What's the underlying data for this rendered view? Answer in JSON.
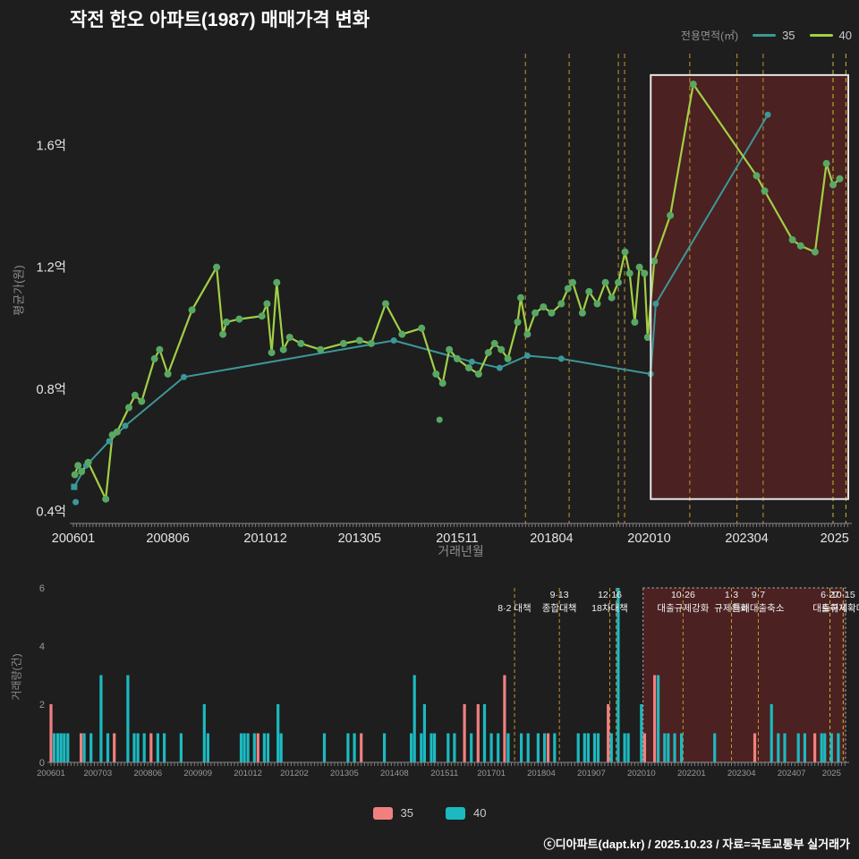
{
  "title": "작전 한오 아파트(1987) 매매가격 변화",
  "footer": "ⓒ디아파트(dapt.kr) / 2025.10.23 / 자료=국토교통부 실거래가",
  "legend_top": {
    "label": "전용면적(㎡)",
    "items": [
      {
        "name": "35",
        "color": "#3c9898"
      },
      {
        "name": "40",
        "color": "#a2cf45"
      }
    ]
  },
  "legend_bottom": {
    "items": [
      {
        "name": "35",
        "color": "#f08080"
      },
      {
        "name": "40",
        "color": "#1cb9c0"
      }
    ]
  },
  "events": [
    {
      "t": 2017.58,
      "line1": "",
      "line2": "8·2 대책",
      "color": "#c89530"
    },
    {
      "t": 2018.7,
      "line1": "9·13",
      "line2": "종합대책",
      "color": "#c89530"
    },
    {
      "t": 2019.96,
      "line1": "12·16",
      "line2": "18차대책",
      "color": "#c89530"
    },
    {
      "t": 2020.12,
      "line1": "",
      "line2": "",
      "color": "#c89530"
    },
    {
      "t": 2021.79,
      "line1": "10·26",
      "line2": "대출규제강화",
      "color": "#c89530"
    },
    {
      "t": 2023.0,
      "line1": "1·3",
      "line2": "규제완화",
      "color": "#c89530"
    },
    {
      "t": 2023.67,
      "line1": "9·7",
      "line2": "특례대출축소",
      "color": "#c89530"
    },
    {
      "t": 2025.46,
      "line1": "6·27",
      "line2": "대출규제",
      "color": "#c6bd38"
    },
    {
      "t": 2025.79,
      "line1": "10·15",
      "line2": "토허제확대",
      "color": "#c6bd38"
    }
  ],
  "chart_data": [
    {
      "type": "line",
      "title": "",
      "xlabel": "거래년월",
      "ylabel": "평균가(원)",
      "xlim": [
        2006.0,
        2025.85
      ],
      "ylim": [
        0.36,
        1.9
      ],
      "x_ticks": [
        {
          "label": "200601",
          "t": 2006.0
        },
        {
          "label": "200806",
          "t": 2008.42
        },
        {
          "label": "201012",
          "t": 2010.92
        },
        {
          "label": "201305",
          "t": 2013.33
        },
        {
          "label": "201511",
          "t": 2015.83
        },
        {
          "label": "201804",
          "t": 2018.25
        },
        {
          "label": "202010",
          "t": 2020.75
        },
        {
          "label": "202304",
          "t": 2023.25
        },
        {
          "label": "2025",
          "t": 2025.5
        }
      ],
      "y_ticks": [
        {
          "label": "0.4억",
          "v": 0.4
        },
        {
          "label": "0.8억",
          "v": 0.8
        },
        {
          "label": "1.2억",
          "v": 1.2
        },
        {
          "label": "1.6억",
          "v": 1.6
        }
      ],
      "series": [
        {
          "name": "35",
          "area_sqm": 35,
          "color": "#3c9898",
          "points": [
            [
              2006.02,
              0.48
            ],
            [
              2006.33,
              0.55
            ],
            [
              2006.92,
              0.63
            ],
            [
              2007.33,
              0.68
            ],
            [
              2008.83,
              0.84
            ],
            [
              2014.21,
              0.96
            ],
            [
              2016.21,
              0.89
            ],
            [
              2016.92,
              0.87
            ],
            [
              2017.63,
              0.91
            ],
            [
              2018.5,
              0.9
            ],
            [
              2020.79,
              0.85
            ],
            [
              2020.92,
              1.08
            ],
            [
              2023.79,
              1.7
            ]
          ]
        },
        {
          "name": "40",
          "area_sqm": 40,
          "color": "#a2cf45",
          "marker_color": "#58a863",
          "points": [
            [
              2006.04,
              0.52
            ],
            [
              2006.12,
              0.55
            ],
            [
              2006.21,
              0.53
            ],
            [
              2006.38,
              0.56
            ],
            [
              2006.83,
              0.44
            ],
            [
              2007.0,
              0.65
            ],
            [
              2007.12,
              0.66
            ],
            [
              2007.42,
              0.74
            ],
            [
              2007.58,
              0.78
            ],
            [
              2007.75,
              0.76
            ],
            [
              2008.08,
              0.9
            ],
            [
              2008.21,
              0.93
            ],
            [
              2008.42,
              0.85
            ],
            [
              2009.04,
              1.06
            ],
            [
              2009.67,
              1.2
            ],
            [
              2009.83,
              0.98
            ],
            [
              2009.92,
              1.02
            ],
            [
              2010.25,
              1.03
            ],
            [
              2010.83,
              1.04
            ],
            [
              2010.96,
              1.08
            ],
            [
              2011.08,
              0.92
            ],
            [
              2011.21,
              1.15
            ],
            [
              2011.38,
              0.93
            ],
            [
              2011.54,
              0.97
            ],
            [
              2011.83,
              0.95
            ],
            [
              2012.33,
              0.93
            ],
            [
              2012.92,
              0.95
            ],
            [
              2013.33,
              0.96
            ],
            [
              2013.63,
              0.95
            ],
            [
              2014.0,
              1.08
            ],
            [
              2014.42,
              0.98
            ],
            [
              2014.92,
              1.0
            ],
            [
              2015.29,
              0.85
            ],
            [
              2015.46,
              0.82
            ],
            [
              2015.63,
              0.93
            ],
            [
              2015.83,
              0.9
            ],
            [
              2016.13,
              0.87
            ],
            [
              2016.38,
              0.85
            ],
            [
              2016.63,
              0.92
            ],
            [
              2016.79,
              0.95
            ],
            [
              2016.96,
              0.93
            ],
            [
              2017.13,
              0.9
            ],
            [
              2017.38,
              1.02
            ],
            [
              2017.46,
              1.1
            ],
            [
              2017.63,
              0.98
            ],
            [
              2017.83,
              1.05
            ],
            [
              2018.04,
              1.07
            ],
            [
              2018.25,
              1.05
            ],
            [
              2018.5,
              1.08
            ],
            [
              2018.67,
              1.13
            ],
            [
              2018.79,
              1.15
            ],
            [
              2019.04,
              1.05
            ],
            [
              2019.21,
              1.12
            ],
            [
              2019.42,
              1.08
            ],
            [
              2019.63,
              1.15
            ],
            [
              2019.79,
              1.1
            ],
            [
              2019.96,
              1.15
            ],
            [
              2020.13,
              1.25
            ],
            [
              2020.25,
              1.18
            ],
            [
              2020.38,
              1.02
            ],
            [
              2020.5,
              1.2
            ],
            [
              2020.63,
              1.18
            ],
            [
              2020.71,
              0.97
            ],
            [
              2020.88,
              1.22
            ],
            [
              2021.29,
              1.37
            ],
            [
              2021.88,
              1.8
            ],
            [
              2023.5,
              1.5
            ],
            [
              2023.71,
              1.45
            ],
            [
              2024.42,
              1.29
            ],
            [
              2024.63,
              1.27
            ],
            [
              2025.0,
              1.25
            ],
            [
              2025.29,
              1.54
            ],
            [
              2025.46,
              1.47
            ],
            [
              2025.63,
              1.49
            ]
          ]
        }
      ],
      "outlier_points": [
        {
          "series": "40",
          "t": 2015.38,
          "v": 0.7
        },
        {
          "series": "35",
          "t": 2006.06,
          "v": 0.43
        }
      ],
      "highlight_box": {
        "t0": 2020.79,
        "t1": 2025.85,
        "v0": 0.44,
        "v1": 1.83,
        "border_color": "#e6e6e6",
        "fill_color": "rgba(150,40,40,0.38)"
      }
    },
    {
      "type": "bar",
      "ylabel": "거래량(건)",
      "xlim": [
        2006.0,
        2025.85
      ],
      "ylim": [
        0,
        6
      ],
      "y_ticks": [
        {
          "label": "0",
          "v": 0
        },
        {
          "label": "2",
          "v": 2
        },
        {
          "label": "4",
          "v": 4
        },
        {
          "label": "6",
          "v": 6
        }
      ],
      "x_ticks": [
        {
          "label": "200601",
          "t": 2006.0
        },
        {
          "label": "200703",
          "t": 2007.17
        },
        {
          "label": "200806",
          "t": 2008.42
        },
        {
          "label": "200909",
          "t": 2009.67
        },
        {
          "label": "201012",
          "t": 2010.92
        },
        {
          "label": "201202",
          "t": 2012.08
        },
        {
          "label": "201305",
          "t": 2013.33
        },
        {
          "label": "201408",
          "t": 2014.58
        },
        {
          "label": "201511",
          "t": 2015.83
        },
        {
          "label": "201701",
          "t": 2017.0
        },
        {
          "label": "201804",
          "t": 2018.25
        },
        {
          "label": "201907",
          "t": 2019.5
        },
        {
          "label": "202010",
          "t": 2020.75
        },
        {
          "label": "202201",
          "t": 2022.0
        },
        {
          "label": "202304",
          "t": 2023.25
        },
        {
          "label": "202407",
          "t": 2024.5
        },
        {
          "label": "2025",
          "t": 2025.5
        }
      ],
      "bar_series": [
        {
          "name": "35",
          "color": "#f08080"
        },
        {
          "name": "40",
          "color": "#1cb9c0"
        }
      ],
      "bars": [
        [
          2006.0,
          2,
          "35"
        ],
        [
          2006.08,
          1,
          "40"
        ],
        [
          2006.17,
          1,
          "40"
        ],
        [
          2006.25,
          1,
          "40"
        ],
        [
          2006.33,
          1,
          "40"
        ],
        [
          2006.42,
          1,
          "40"
        ],
        [
          2006.75,
          1,
          "35"
        ],
        [
          2006.83,
          1,
          "40"
        ],
        [
          2007.0,
          1,
          "40"
        ],
        [
          2007.25,
          3,
          "40"
        ],
        [
          2007.42,
          1,
          "40"
        ],
        [
          2007.58,
          1,
          "35"
        ],
        [
          2007.92,
          3,
          "40"
        ],
        [
          2008.08,
          1,
          "40"
        ],
        [
          2008.17,
          1,
          "40"
        ],
        [
          2008.33,
          1,
          "40"
        ],
        [
          2008.5,
          1,
          "35"
        ],
        [
          2008.67,
          1,
          "40"
        ],
        [
          2008.83,
          1,
          "40"
        ],
        [
          2009.25,
          1,
          "40"
        ],
        [
          2009.83,
          2,
          "40"
        ],
        [
          2009.92,
          1,
          "40"
        ],
        [
          2010.75,
          1,
          "40"
        ],
        [
          2010.83,
          1,
          "40"
        ],
        [
          2010.92,
          1,
          "40"
        ],
        [
          2011.08,
          1,
          "40"
        ],
        [
          2011.17,
          1,
          "35"
        ],
        [
          2011.33,
          1,
          "40"
        ],
        [
          2011.42,
          1,
          "40"
        ],
        [
          2011.67,
          2,
          "40"
        ],
        [
          2011.75,
          1,
          "40"
        ],
        [
          2012.83,
          1,
          "40"
        ],
        [
          2013.42,
          1,
          "40"
        ],
        [
          2013.58,
          1,
          "40"
        ],
        [
          2013.75,
          1,
          "35"
        ],
        [
          2014.33,
          1,
          "40"
        ],
        [
          2015.0,
          1,
          "40"
        ],
        [
          2015.08,
          3,
          "40"
        ],
        [
          2015.25,
          1,
          "40"
        ],
        [
          2015.33,
          2,
          "40"
        ],
        [
          2015.5,
          1,
          "40"
        ],
        [
          2015.58,
          1,
          "40"
        ],
        [
          2015.92,
          1,
          "40"
        ],
        [
          2016.08,
          1,
          "40"
        ],
        [
          2016.33,
          2,
          "35"
        ],
        [
          2016.5,
          1,
          "40"
        ],
        [
          2016.67,
          2,
          "35"
        ],
        [
          2016.83,
          2,
          "40"
        ],
        [
          2017.0,
          1,
          "40"
        ],
        [
          2017.17,
          1,
          "40"
        ],
        [
          2017.33,
          3,
          "35"
        ],
        [
          2017.42,
          1,
          "40"
        ],
        [
          2017.75,
          1,
          "40"
        ],
        [
          2017.92,
          1,
          "40"
        ],
        [
          2018.17,
          1,
          "40"
        ],
        [
          2018.33,
          1,
          "40"
        ],
        [
          2018.42,
          1,
          "35"
        ],
        [
          2018.58,
          1,
          "40"
        ],
        [
          2019.17,
          1,
          "40"
        ],
        [
          2019.33,
          1,
          "40"
        ],
        [
          2019.42,
          1,
          "40"
        ],
        [
          2019.58,
          1,
          "40"
        ],
        [
          2019.67,
          1,
          "40"
        ],
        [
          2019.92,
          2,
          "35"
        ],
        [
          2020.0,
          1,
          "40"
        ],
        [
          2020.17,
          6,
          "40"
        ],
        [
          2020.33,
          1,
          "40"
        ],
        [
          2020.42,
          1,
          "40"
        ],
        [
          2020.75,
          2,
          "40"
        ],
        [
          2020.83,
          1,
          "35"
        ],
        [
          2021.08,
          3,
          "35"
        ],
        [
          2021.17,
          3,
          "40"
        ],
        [
          2021.33,
          1,
          "40"
        ],
        [
          2021.42,
          1,
          "40"
        ],
        [
          2021.58,
          1,
          "40"
        ],
        [
          2021.75,
          1,
          "40"
        ],
        [
          2022.58,
          1,
          "40"
        ],
        [
          2023.58,
          1,
          "35"
        ],
        [
          2024.0,
          2,
          "40"
        ],
        [
          2024.17,
          1,
          "40"
        ],
        [
          2024.33,
          1,
          "40"
        ],
        [
          2024.67,
          1,
          "40"
        ],
        [
          2024.83,
          1,
          "40"
        ],
        [
          2025.08,
          1,
          "35"
        ],
        [
          2025.25,
          1,
          "40"
        ],
        [
          2025.33,
          1,
          "40"
        ],
        [
          2025.5,
          1,
          "40"
        ],
        [
          2025.67,
          1,
          "40"
        ]
      ],
      "highlight_box": {
        "t0": 2020.79,
        "t1": 2025.85,
        "border_color": "#aaaaaa",
        "fill_color": "rgba(150,40,40,0.38)"
      }
    }
  ]
}
